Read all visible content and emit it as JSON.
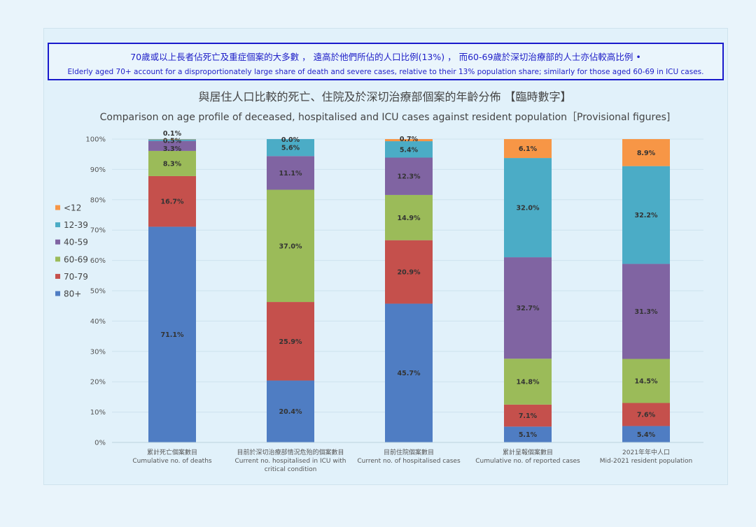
{
  "note": {
    "zh": "70歲或以上長者佔死亡及重症個案的大多數 ， 遠高於他們所佔的人口比例(13%) ， 而60-69歲於深切治療部的人士亦佔較高比例 •",
    "en": "Elderly aged 70+ account for a disproportionately large share of death and severe cases, relative to their 13% population share; similarly for those aged 60-69 in ICU cases."
  },
  "chart_data": {
    "type": "bar",
    "stacked": "percent",
    "title": "與居住人口比較的死亡、住院及於深切治療部個案的年齡分佈 【臨時數字】",
    "subtitle": "Comparison on age profile of deceased, hospitalised and ICU cases against resident population［Provisional figures]",
    "ylim": [
      0,
      100
    ],
    "yticks": [
      "0%",
      "10%",
      "20%",
      "30%",
      "40%",
      "50%",
      "60%",
      "70%",
      "80%",
      "90%",
      "100%"
    ],
    "grid": true,
    "legend_position": "left",
    "categories": [
      {
        "zh": "累計死亡個案數目",
        "en": "Cumulative no. of deaths"
      },
      {
        "zh": "目前於深切治療部情況危殆的個案數目",
        "en": "Current no. hospitalised in ICU with critical condition"
      },
      {
        "zh": "目前住院個案數目",
        "en": "Current no. of hospitalised cases"
      },
      {
        "zh": "累計呈報個案數目",
        "en": "Cumulative no. of reported cases"
      },
      {
        "zh": "2021年年中人口",
        "en": "Mid-2021 resident population"
      }
    ],
    "series": [
      {
        "name": "80+",
        "color": "#4f7dc3",
        "values": [
          71.1,
          20.4,
          45.7,
          5.1,
          5.4
        ]
      },
      {
        "name": "70-79",
        "color": "#c5504c",
        "values": [
          16.7,
          25.9,
          20.9,
          7.1,
          7.6
        ]
      },
      {
        "name": "60-69",
        "color": "#9bbb59",
        "values": [
          8.3,
          37.0,
          14.9,
          14.8,
          14.5
        ]
      },
      {
        "name": "40-59",
        "color": "#8064a2",
        "values": [
          3.3,
          11.1,
          12.3,
          32.7,
          31.3
        ]
      },
      {
        "name": "12-39",
        "color": "#4bacc6",
        "values": [
          0.5,
          5.6,
          5.4,
          32.0,
          32.2
        ]
      },
      {
        "name": "<12",
        "color": "#f79646",
        "values": [
          0.1,
          0.0,
          0.7,
          6.1,
          8.9
        ]
      }
    ]
  }
}
